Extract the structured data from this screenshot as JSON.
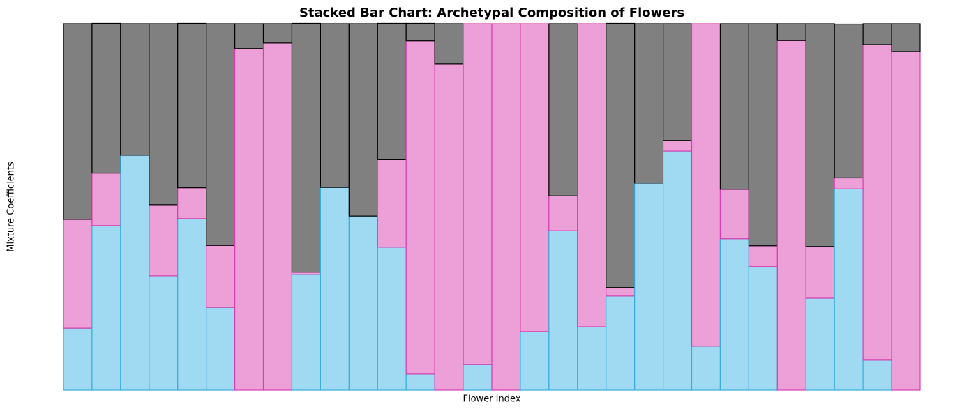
{
  "chart_data": {
    "type": "stacked_bar",
    "title": "Stacked Bar Chart: Archetypal Composition of Flowers",
    "x_label": "Flower Index",
    "y_label": "Mixture Coefficients",
    "ylim": [
      0,
      1
    ],
    "series": [
      {
        "color": "#a0d9f2",
        "edgecolor": "#3aaed8",
        "values": [
          0.169,
          0.449,
          0.641,
          0.312,
          0.468,
          0.226,
          0,
          0,
          0.316,
          0.553,
          0.475,
          0.39,
          0.044,
          0,
          0.07,
          0,
          0.16,
          0.435,
          0.173,
          0.257,
          0.565,
          0.652,
          0.12,
          0.413,
          0.337,
          0,
          0.251,
          0.549,
          0.082,
          0
        ]
      },
      {
        "color": "#eda0d8",
        "edgecolor": "#d63fb0",
        "values": [
          0.297,
          0.143,
          0,
          0.194,
          0.084,
          0.169,
          0.932,
          0.947,
          0.006,
          0,
          0,
          0.24,
          0.909,
          0.89,
          0.93,
          1,
          0.84,
          0.095,
          0.827,
          0.023,
          0,
          0.029,
          0.88,
          0.135,
          0.057,
          0.954,
          0.141,
          0.03,
          0.861,
          0.924
        ]
      },
      {
        "color": "#808080",
        "edgecolor": "#000000",
        "values": [
          0.534,
          0.409,
          0.359,
          0.494,
          0.449,
          0.605,
          0.068,
          0.053,
          0.679,
          0.447,
          0.525,
          0.371,
          0.048,
          0.11,
          0,
          0,
          0,
          0.47,
          0,
          0.721,
          0.435,
          0.319,
          0,
          0.452,
          0.606,
          0.046,
          0.608,
          0.42,
          0.057,
          0.076
        ]
      }
    ]
  }
}
